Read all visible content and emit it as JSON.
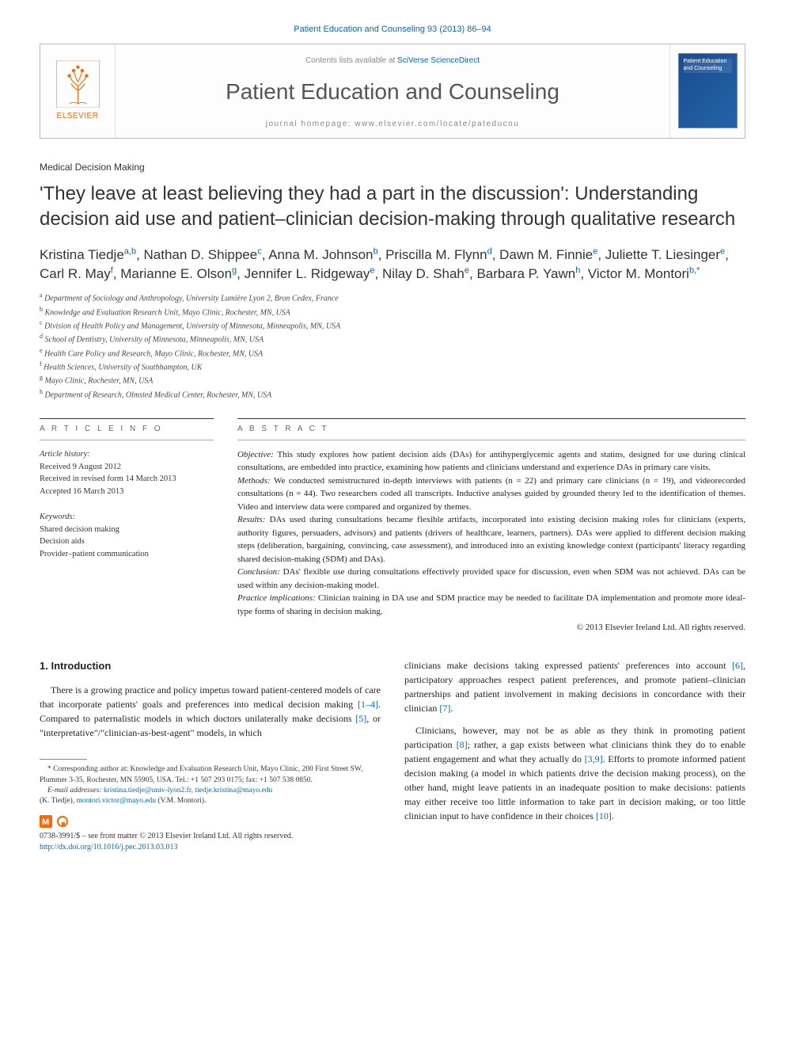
{
  "journal_ref": "Patient Education and Counseling 93 (2013) 86–94",
  "masthead": {
    "contents_prefix": "Contents lists available at ",
    "contents_link": "SciVerse ScienceDirect",
    "journal_name": "Patient Education and Counseling",
    "homepage_prefix": "journal homepage: ",
    "homepage_url": "www.elsevier.com/locate/pateducou",
    "publisher": "ELSEVIER",
    "cover_text": "Patient Education and Counseling"
  },
  "section_label": "Medical Decision Making",
  "title": "'They leave at least believing they had a part in the discussion': Understanding decision aid use and patient–clinician decision-making through qualitative research",
  "authors_html": "Kristina Tiedje|a,b|, Nathan D. Shippee|c|, Anna M. Johnson|b|, Priscilla M. Flynn|d|, Dawn M. Finnie|e|, Juliette T. Liesinger|e|, Carl R. May|f|, Marianne E. Olson|g|, Jennifer L. Ridgeway|e|, Nilay D. Shah|e|, Barbara P. Yawn|h|, Victor M. Montori|b,*|",
  "affiliations": [
    {
      "sup": "a",
      "text": "Department of Sociology and Anthropology, University Lumière Lyon 2, Bron Cedex, France"
    },
    {
      "sup": "b",
      "text": "Knowledge and Evaluation Research Unit, Mayo Clinic, Rochester, MN, USA"
    },
    {
      "sup": "c",
      "text": "Division of Health Policy and Management, University of Minnesota, Minneapolis, MN, USA"
    },
    {
      "sup": "d",
      "text": "School of Dentistry, University of Minnesota, Minneapolis, MN, USA"
    },
    {
      "sup": "e",
      "text": "Health Care Policy and Research, Mayo Clinic, Rochester, MN, USA"
    },
    {
      "sup": "f",
      "text": "Health Sciences, University of Southhampton, UK"
    },
    {
      "sup": "g",
      "text": "Mayo Clinic, Rochester, MN, USA"
    },
    {
      "sup": "h",
      "text": "Department of Research, Olmsted Medical Center, Rochester, MN, USA"
    }
  ],
  "info_header": "A R T I C L E   I N F O",
  "abs_header": "A B S T R A C T",
  "history": {
    "label": "Article history:",
    "received": "Received 9 August 2012",
    "revised": "Received in revised form 14 March 2013",
    "accepted": "Accepted 16 March 2013"
  },
  "keywords": {
    "label": "Keywords:",
    "items": [
      "Shared decision making",
      "Decision aids",
      "Provider–patient communication"
    ]
  },
  "abstract": {
    "objective_label": "Objective:",
    "objective": " This study explores how patient decision aids (DAs) for antihyperglycemic agents and statins, designed for use during clinical consultations, are embedded into practice, examining how patients and clinicians understand and experience DAs in primary care visits.",
    "methods_label": "Methods:",
    "methods": " We conducted semistructured in-depth interviews with patients (n = 22) and primary care clinicians (n = 19), and videorecorded consultations (n = 44). Two researchers coded all transcripts. Inductive analyses guided by grounded theory led to the identification of themes. Video and interview data were compared and organized by themes.",
    "results_label": "Results:",
    "results": " DAs used during consultations became flexible artifacts, incorporated into existing decision making roles for clinicians (experts, authority figures, persuaders, advisors) and patients (drivers of healthcare, learners, partners). DAs were applied to different decision making steps (deliberation, bargaining, convincing, case assessment), and introduced into an existing knowledge context (participants' literacy regarding shared decision-making (SDM) and DAs).",
    "conclusion_label": "Conclusion:",
    "conclusion": " DAs' flexible use during consultations effectively provided space for discussion, even when SDM was not achieved. DAs can be used within any decision-making model.",
    "practice_label": "Practice implications:",
    "practice": " Clinician training in DA use and SDM practice may be needed to facilitate DA implementation and promote more ideal-type forms of sharing in decision making.",
    "copyright": "© 2013 Elsevier Ireland Ltd. All rights reserved."
  },
  "body": {
    "heading": "1. Introduction",
    "p1a": "There is a growing practice and policy impetus toward patient-centered models of care that incorporate patients' goals and preferences into medical decision making ",
    "p1_cite1": "[1–4]",
    "p1b": ". Compared to paternalistic models in which doctors unilaterally make decisions ",
    "p1_cite2": "[5]",
    "p1c": ", or \"interpretative\"/\"clinician-as-best-agent\" models, in which",
    "p2a": "clinicians make decisions taking expressed patients' preferences into account ",
    "p2_cite1": "[6]",
    "p2b": ", participatory approaches respect patient preferences, and promote patient–clinician partnerships and patient involvement in making decisions in concordance with their clinician ",
    "p2_cite2": "[7]",
    "p2c": ".",
    "p3a": "Clinicians, however, may not be as able as they think in promoting patient participation ",
    "p3_cite1": "[8]",
    "p3b": "; rather, a gap exists between what clinicians think they do to enable patient engagement and what they actually do ",
    "p3_cite2": "[3,9]",
    "p3c": ". Efforts to promote informed patient decision making (a model in which patients drive the decision making process), on the other hand, might leave patients in an inadequate position to make decisions: patients may either receive too little information to take part in decision making, or too little clinician input to have confidence in their choices ",
    "p3_cite3": "[10]",
    "p3d": "."
  },
  "footnotes": {
    "corr": "* Corresponding author at: Knowledge and Evaluation Research Unit, Mayo Clinic, 200 First Street SW, Plummer 3-35, Rochester, MN 55905, USA. Tel.: +1 507 293 0175; fax: +1 507 538 0850.",
    "email_label": "E-mail addresses: ",
    "email1": "kristina.tiedje@univ-lyon2.fr",
    "email1_sep": ", ",
    "email2": "tiedje.kristina@mayo.edu",
    "email_kt": " (K. Tiedje), ",
    "email3": "montori.victor@mayo.edu",
    "email_vm": " (V.M. Montori)."
  },
  "oa_line": {
    "issn": "0738-3991/$ – see front matter © 2013 Elsevier Ireland Ltd. All rights reserved.",
    "doi": "http://dx.doi.org/10.1016/j.pec.2013.03.013"
  }
}
